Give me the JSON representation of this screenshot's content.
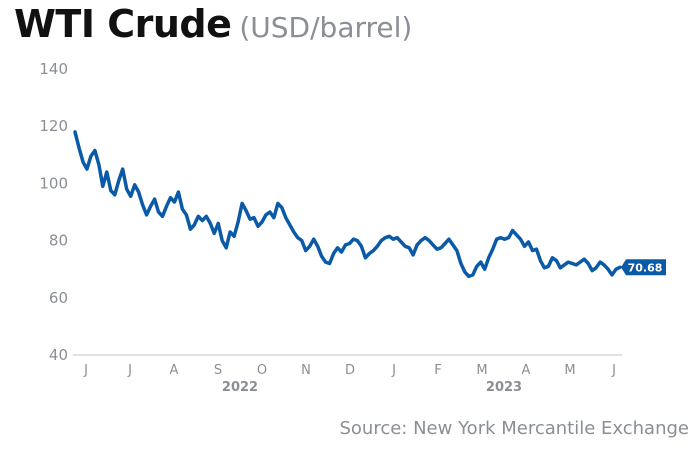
{
  "header": {
    "title": "WTI Crude",
    "subtitle": "(USD/barrel)"
  },
  "source": "Source: New York Mercantile Exchange",
  "colors": {
    "line": "#0a5aa8",
    "axis": "#bfc3c8",
    "text_muted": "#8a8f96",
    "title": "#111111"
  },
  "chart_data": {
    "type": "line",
    "title": "WTI Crude",
    "ylabel": "(USD/barrel)",
    "ylim": [
      40,
      140
    ],
    "yticks": [
      40,
      60,
      80,
      100,
      120,
      140
    ],
    "grid": false,
    "legend": "none",
    "month_labels": [
      "J",
      "J",
      "A",
      "S",
      "O",
      "N",
      "D",
      "J",
      "F",
      "M",
      "A",
      "M",
      "J"
    ],
    "year_labels": [
      {
        "label": "2022",
        "after_month_index": 3
      },
      {
        "label": "2023",
        "after_month_index": 9
      }
    ],
    "end_label": "70.68",
    "series": [
      {
        "values": [
          118.0,
          112.5,
          107.5,
          105.0,
          109.5,
          111.5,
          106.5,
          99.0,
          104.0,
          97.5,
          96.0,
          101.0,
          105.0,
          98.0,
          95.5,
          99.5,
          97.0,
          92.5,
          89.0,
          92.0,
          94.5,
          90.0,
          88.5,
          92.0,
          95.0,
          93.5,
          97.0,
          91.0,
          89.0,
          84.0,
          85.5,
          88.5,
          87.0,
          88.5,
          86.0,
          82.5,
          86.0,
          80.0,
          77.5,
          83.0,
          81.5,
          86.5,
          93.0,
          90.5,
          87.5,
          88.0,
          85.0,
          86.5,
          89.0,
          90.0,
          88.0,
          93.0,
          91.5,
          88.0,
          85.5,
          83.0,
          81.0,
          80.0,
          76.5,
          78.0,
          80.5,
          78.0,
          74.5,
          72.5,
          72.0,
          75.5,
          77.5,
          76.0,
          78.5,
          79.0,
          80.5,
          80.0,
          78.0,
          74.0,
          75.5,
          76.5,
          78.0,
          80.0,
          81.0,
          81.5,
          80.5,
          81.0,
          79.5,
          78.0,
          77.5,
          75.0,
          78.5,
          80.0,
          81.0,
          80.0,
          78.5,
          77.0,
          77.5,
          79.0,
          80.5,
          78.5,
          76.5,
          72.0,
          69.0,
          67.5,
          68.0,
          71.0,
          72.5,
          70.0,
          74.0,
          77.0,
          80.5,
          81.0,
          80.5,
          81.0,
          83.5,
          82.0,
          80.5,
          78.0,
          79.5,
          76.5,
          77.0,
          73.0,
          70.5,
          71.0,
          74.0,
          73.0,
          70.5,
          71.5,
          72.5,
          72.0,
          71.5,
          72.5,
          73.5,
          72.0,
          69.5,
          70.5,
          72.5,
          71.5,
          70.0,
          68.0,
          70.0,
          70.68
        ]
      }
    ]
  }
}
